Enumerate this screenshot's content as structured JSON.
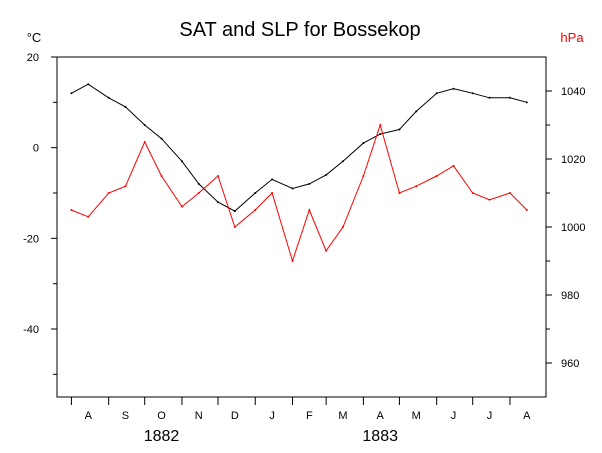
{
  "chart_data": {
    "type": "line",
    "title": "SAT and SLP for Bossekop",
    "left_axis": {
      "unit": "°C",
      "ylim": [
        -55,
        20
      ],
      "ticks": [
        20,
        0,
        -20,
        -40
      ],
      "tick_labels": [
        "20",
        "0",
        "-20",
        "-40"
      ],
      "minor_ticks": [
        10,
        -10,
        -30,
        -50
      ]
    },
    "right_axis": {
      "unit": "hPa",
      "ylim": [
        950,
        1050
      ],
      "ticks": [
        1040,
        1020,
        1000,
        980,
        960
      ],
      "tick_labels": [
        "1040",
        "1020",
        "1000",
        "980",
        "960"
      ],
      "minor_ticks": [
        1030,
        1010,
        990,
        970
      ]
    },
    "x_axis": {
      "months": [
        "A",
        "S",
        "O",
        "N",
        "D",
        "J",
        "F",
        "M",
        "A",
        "M",
        "J",
        "J",
        "A"
      ],
      "years": [
        "1882",
        "1883"
      ]
    },
    "grid": false,
    "legend": "none",
    "series": [
      {
        "quantity": "SAT",
        "axis": "left",
        "color": "#000000",
        "x": [
          "1882-08-01",
          "1882-08-15",
          "1882-09-01",
          "1882-09-15",
          "1882-10-01",
          "1882-10-15",
          "1882-11-01",
          "1882-11-15",
          "1882-12-01",
          "1882-12-15",
          "1883-01-01",
          "1883-01-15",
          "1883-02-01",
          "1883-02-15",
          "1883-03-01",
          "1883-03-15",
          "1883-04-01",
          "1883-04-15",
          "1883-05-01",
          "1883-05-15",
          "1883-06-01",
          "1883-06-15",
          "1883-07-01",
          "1883-07-15",
          "1883-08-01",
          "1883-08-15"
        ],
        "y": [
          12,
          14,
          11,
          9,
          5,
          2,
          -3,
          -8,
          -12,
          -14,
          -10,
          -7,
          -9,
          -8,
          -6,
          -3,
          1,
          3,
          4,
          8,
          12,
          13,
          12,
          11,
          11,
          10
        ]
      },
      {
        "quantity": "SLP",
        "axis": "right",
        "color": "#ff0000",
        "x": [
          "1882-08-01",
          "1882-08-15",
          "1882-09-01",
          "1882-09-15",
          "1882-10-01",
          "1882-10-15",
          "1882-11-01",
          "1882-11-15",
          "1882-12-01",
          "1882-12-15",
          "1883-01-01",
          "1883-01-15",
          "1883-02-01",
          "1883-02-15",
          "1883-03-01",
          "1883-03-15",
          "1883-04-01",
          "1883-04-15",
          "1883-05-01",
          "1883-05-15",
          "1883-06-01",
          "1883-06-15",
          "1883-07-01",
          "1883-07-15",
          "1883-08-01",
          "1883-08-15"
        ],
        "y": [
          1005,
          1003,
          1010,
          1012,
          1025,
          1015,
          1006,
          1010,
          1015,
          1000,
          1005,
          1010,
          990,
          1005,
          993,
          1000,
          1015,
          1030,
          1010,
          1012,
          1015,
          1018,
          1010,
          1008,
          1010,
          1005
        ]
      }
    ]
  }
}
